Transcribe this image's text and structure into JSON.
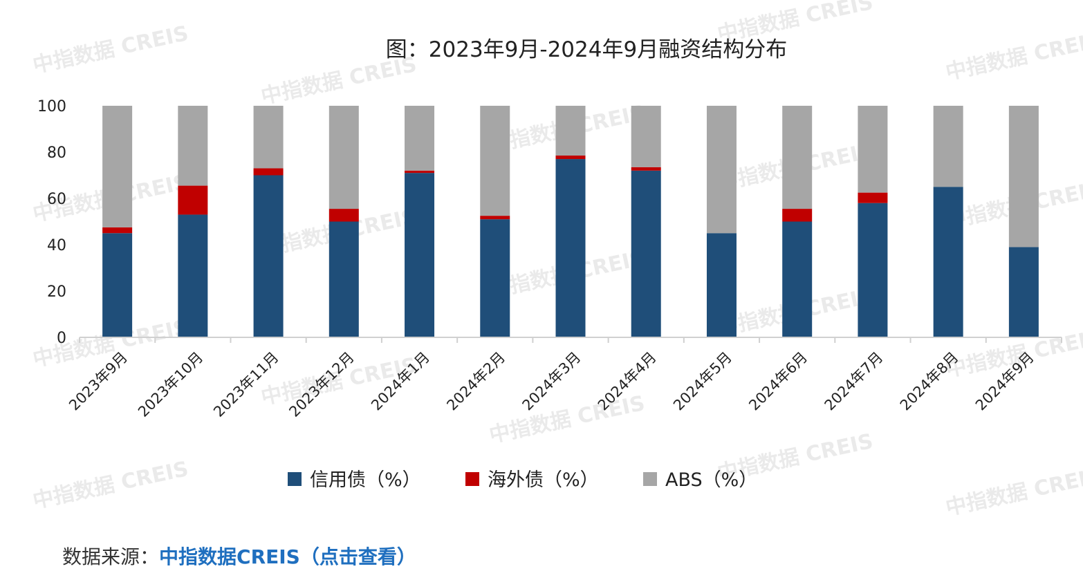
{
  "chart_data": {
    "type": "bar",
    "stacked": true,
    "title": "图：2023年9月-2024年9月融资结构分布",
    "categories": [
      "2023年9月",
      "2023年10月",
      "2023年11月",
      "2023年12月",
      "2024年1月",
      "2024年2月",
      "2024年3月",
      "2024年4月",
      "2024年5月",
      "2024年6月",
      "2024年7月",
      "2024年8月",
      "2024年9月"
    ],
    "series": [
      {
        "name": "信用债（%）",
        "color": "#1f4e79",
        "values": [
          45,
          53,
          70,
          50,
          71,
          51,
          77,
          72,
          45,
          50,
          58,
          65,
          39
        ]
      },
      {
        "name": "海外债（%）",
        "color": "#c00000",
        "values": [
          2.5,
          12.5,
          3,
          5.5,
          1,
          1.5,
          1.5,
          1.5,
          0,
          5.5,
          4.5,
          0,
          0
        ]
      },
      {
        "name": "ABS（%）",
        "color": "#a6a6a6",
        "values": [
          52.5,
          34.5,
          27,
          44.5,
          28,
          47.5,
          21.5,
          26.5,
          55,
          44.5,
          37.5,
          35,
          61
        ]
      }
    ],
    "ylim": [
      0,
      100
    ],
    "yticks": [
      0,
      20,
      40,
      60,
      80,
      100
    ],
    "legend_position": "bottom",
    "grid": false
  },
  "watermark": {
    "text_cn": "中指数据",
    "text_en": "CREIS"
  },
  "source": {
    "label": "数据来源：",
    "link_text": "中指数据CREIS（点击查看）"
  }
}
